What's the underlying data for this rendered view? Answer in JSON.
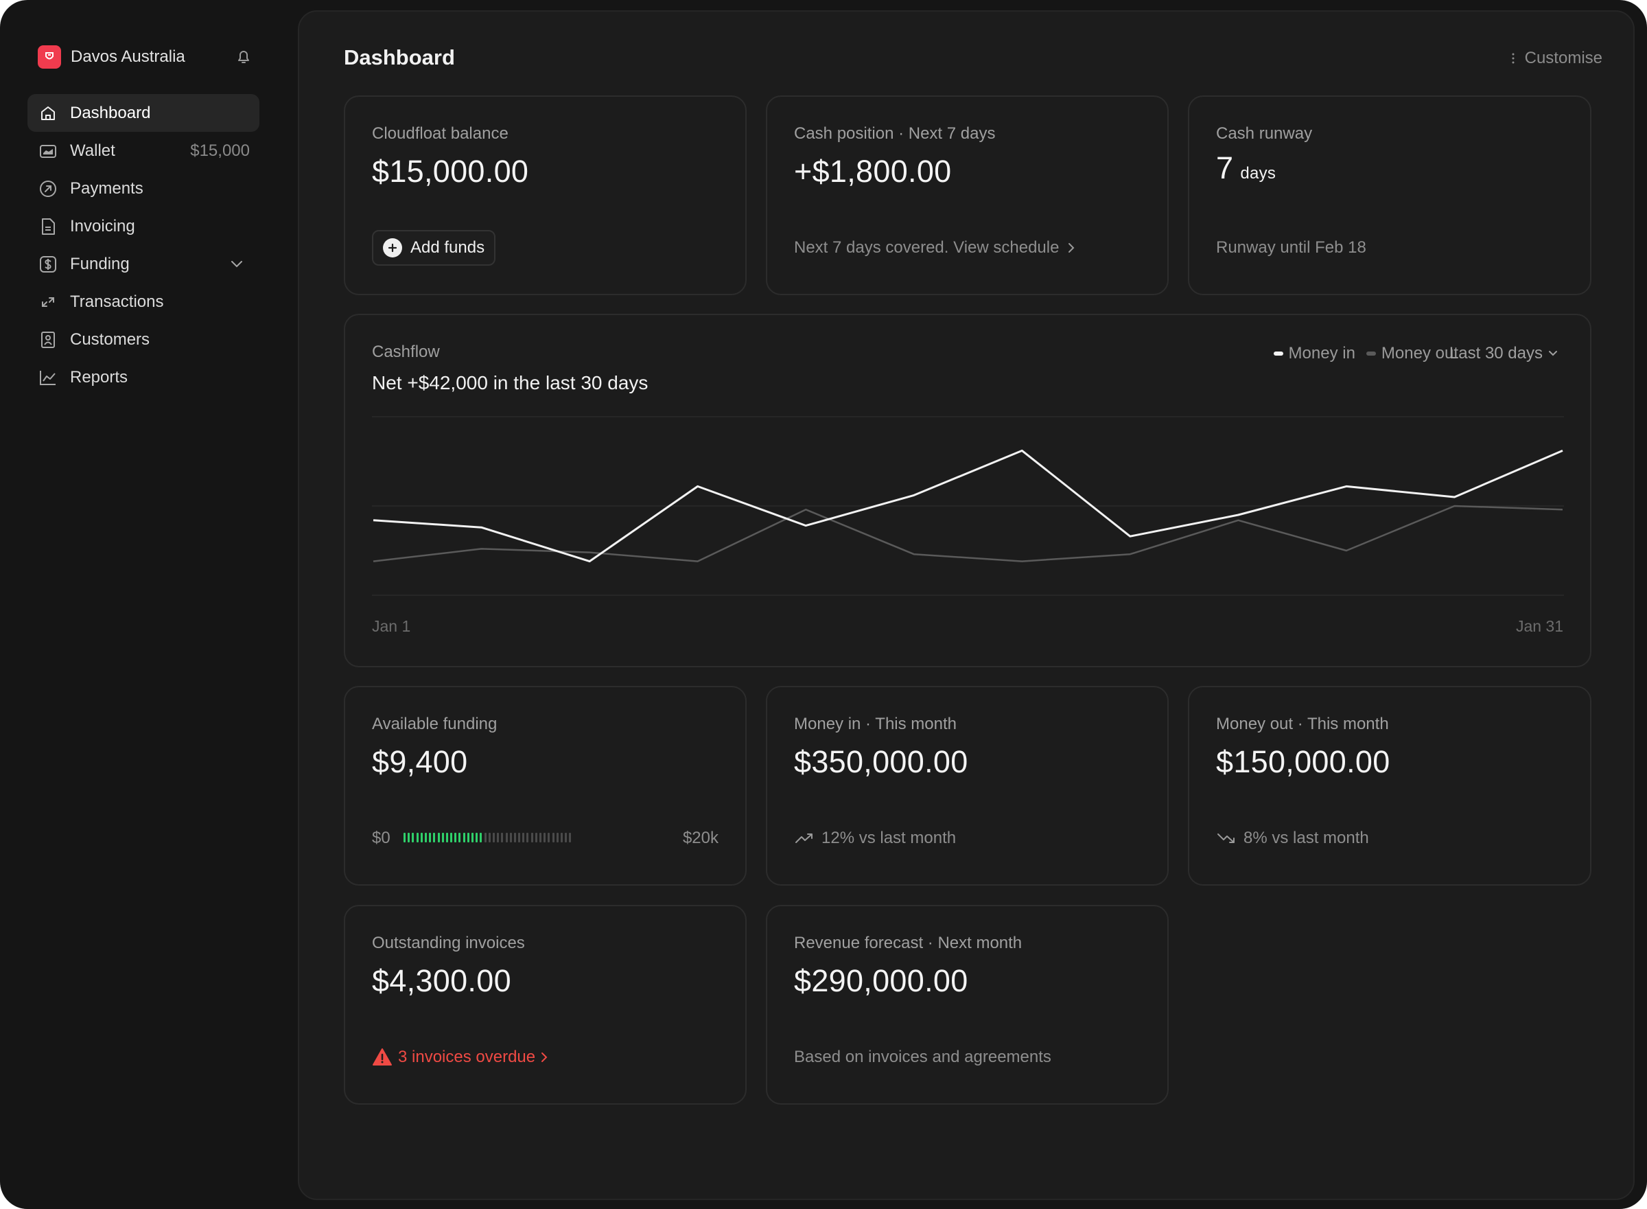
{
  "org": {
    "name": "Davos Australia"
  },
  "nav": [
    {
      "label": "Dashboard",
      "icon": "home-icon",
      "active": true
    },
    {
      "label": "Wallet",
      "icon": "wallet-icon",
      "meta": "$15,000"
    },
    {
      "label": "Payments",
      "icon": "payments-icon"
    },
    {
      "label": "Invoicing",
      "icon": "invoice-icon"
    },
    {
      "label": "Funding",
      "icon": "dollar-icon",
      "expandable": true
    },
    {
      "label": "Transactions",
      "icon": "transactions-icon"
    },
    {
      "label": "Customers",
      "icon": "customers-icon"
    },
    {
      "label": "Reports",
      "icon": "reports-icon"
    }
  ],
  "header": {
    "title": "Dashboard",
    "customise": "Customise"
  },
  "cards": {
    "balance": {
      "label": "Cloudfloat balance",
      "value": "$15,000.00",
      "button": "Add funds"
    },
    "cash_position": {
      "label": "Cash position · Next 7 days",
      "value": "+$1,800.00",
      "foot": "Next 7 days covered. View schedule"
    },
    "runway": {
      "label": "Cash runway",
      "value": "7",
      "unit": "days",
      "foot": "Runway until Feb 18"
    },
    "available_funding": {
      "label": "Available funding",
      "value": "$9,400",
      "min": "$0",
      "max": "$20k",
      "fraction": 0.47
    },
    "money_in": {
      "label": "Money in · This month",
      "value": "$350,000.00",
      "foot": "12% vs last month"
    },
    "money_out": {
      "label": "Money out · This month",
      "value": "$150,000.00",
      "foot": "8% vs last month"
    },
    "outstanding": {
      "label": "Outstanding invoices",
      "value": "$4,300.00",
      "foot": "3 invoices overdue"
    },
    "forecast": {
      "label": "Revenue forecast · Next month",
      "value": "$290,000.00",
      "foot": "Based on invoices and agreements"
    }
  },
  "cashflow": {
    "label": "Cashflow",
    "subtitle": "Net +$42,000 in the last 30 days",
    "range": "Last 30 days",
    "x_start": "Jan 1",
    "x_end": "Jan 31"
  },
  "chart_data": {
    "type": "line",
    "xlabel": "",
    "ylabel": "",
    "grid": true,
    "legend": "top-right",
    "series": [
      {
        "name": "Money in",
        "color": "#f2f2f2",
        "values": [
          0.42,
          0.38,
          0.19,
          0.61,
          0.39,
          0.56,
          0.81,
          0.33,
          0.45,
          0.61,
          0.55,
          0.81
        ]
      },
      {
        "name": "Money out",
        "color": "#5a5a5a",
        "values": [
          0.19,
          0.26,
          0.24,
          0.19,
          0.48,
          0.23,
          0.19,
          0.23,
          0.42,
          0.25,
          0.5,
          0.48
        ]
      }
    ]
  },
  "colors": {
    "accent": "#f03b4e",
    "progress_on": "#2fd06a",
    "progress_off": "#4a4a4a",
    "warning": "#ef4a44"
  }
}
